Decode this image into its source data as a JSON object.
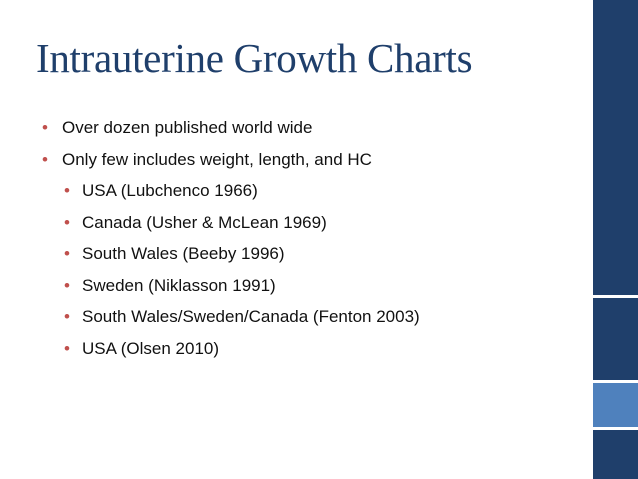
{
  "slide": {
    "title": "Intrauterine Growth Charts",
    "bullet_glyph": "•",
    "bullets": [
      {
        "text": "Over dozen published world wide",
        "level": 1
      },
      {
        "text": "Only few includes weight, length, and HC",
        "level": 1
      },
      {
        "text": "USA (Lubchenco 1966)",
        "level": 2
      },
      {
        "text": "Canada (Usher & McLean 1969)",
        "level": 2
      },
      {
        "text": "South Wales (Beeby 1996)",
        "level": 2
      },
      {
        "text": "Sweden (Niklasson 1991)",
        "level": 2
      },
      {
        "text": "South Wales/Sweden/Canada (Fenton 2003)",
        "level": 2
      },
      {
        "text": "USA (Olsen 2010)",
        "level": 2
      }
    ]
  },
  "colors": {
    "title": "#1f3f6b",
    "bullet": "#c0504d",
    "rail_dark": "#1f3f6b",
    "rail_accent": "#4f81bd"
  }
}
